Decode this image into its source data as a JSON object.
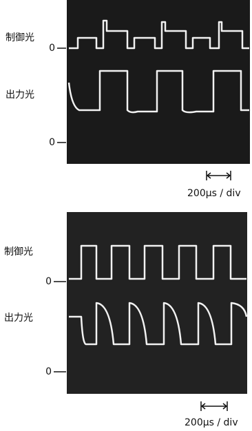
{
  "panels": [
    {
      "control_label": "制御光",
      "control_zero": "0",
      "output_label": "出力光",
      "output_zero": "0",
      "scale": "200μs / div"
    },
    {
      "control_label": "制御光",
      "control_zero": "0",
      "output_label": "出力光",
      "output_zero": "0",
      "scale": "200μs / div"
    }
  ]
}
